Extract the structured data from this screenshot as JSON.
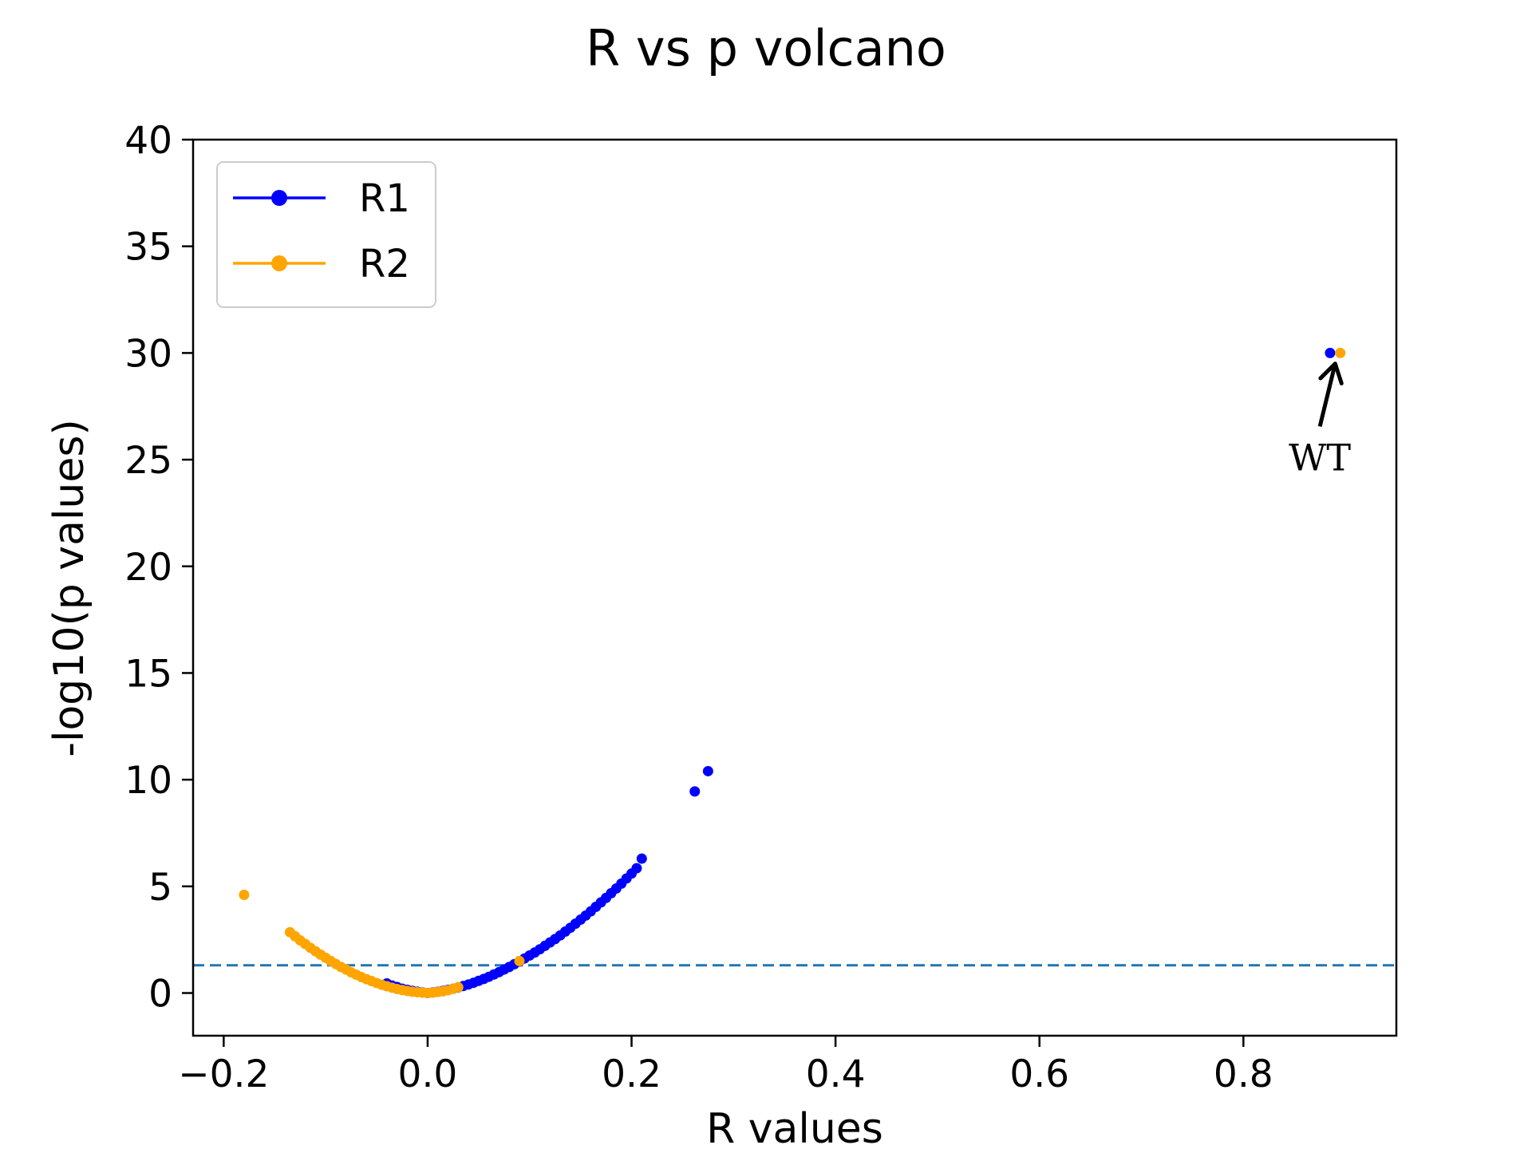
{
  "chart_data": {
    "type": "scatter",
    "title": "R vs p volcano",
    "xlabel": "R values",
    "ylabel": "-log10(p values)",
    "xlim": [
      -0.23,
      0.95
    ],
    "ylim": [
      -2,
      40
    ],
    "x_ticks": [
      -0.2,
      0.0,
      0.2,
      0.4,
      0.6,
      0.8
    ],
    "x_tick_labels": [
      "−0.2",
      "0.0",
      "0.2",
      "0.4",
      "0.6",
      "0.8"
    ],
    "y_ticks": [
      0,
      5,
      10,
      15,
      20,
      25,
      30,
      35,
      40
    ],
    "y_tick_labels": [
      "0",
      "5",
      "10",
      "15",
      "20",
      "25",
      "30",
      "35",
      "40"
    ],
    "grid": false,
    "legend_position": "top-left",
    "threshold_line": {
      "y": 1.3,
      "style": "dashed",
      "color": "#1f77b4"
    },
    "series": [
      {
        "name": "R1",
        "color": "#0000ff",
        "points": [
          [
            -0.04,
            0.45
          ],
          [
            -0.035,
            0.35
          ],
          [
            -0.03,
            0.28
          ],
          [
            -0.025,
            0.2
          ],
          [
            -0.02,
            0.15
          ],
          [
            -0.015,
            0.1
          ],
          [
            -0.01,
            0.06
          ],
          [
            -0.005,
            0.03
          ],
          [
            0.0,
            0.0
          ],
          [
            0.005,
            0.03
          ],
          [
            0.01,
            0.06
          ],
          [
            0.015,
            0.1
          ],
          [
            0.02,
            0.15
          ],
          [
            0.025,
            0.2
          ],
          [
            0.03,
            0.26
          ],
          [
            0.035,
            0.33
          ],
          [
            0.04,
            0.4
          ],
          [
            0.045,
            0.48
          ],
          [
            0.05,
            0.57
          ],
          [
            0.055,
            0.66
          ],
          [
            0.06,
            0.76
          ],
          [
            0.065,
            0.87
          ],
          [
            0.07,
            0.98
          ],
          [
            0.075,
            1.1
          ],
          [
            0.08,
            1.22
          ],
          [
            0.085,
            1.35
          ],
          [
            0.09,
            1.48
          ],
          [
            0.095,
            1.62
          ],
          [
            0.1,
            1.76
          ],
          [
            0.105,
            1.9
          ],
          [
            0.11,
            2.05
          ],
          [
            0.115,
            2.21
          ],
          [
            0.12,
            2.37
          ],
          [
            0.125,
            2.53
          ],
          [
            0.13,
            2.7
          ],
          [
            0.135,
            2.88
          ],
          [
            0.14,
            3.06
          ],
          [
            0.145,
            3.25
          ],
          [
            0.15,
            3.44
          ],
          [
            0.155,
            3.63
          ],
          [
            0.16,
            3.83
          ],
          [
            0.165,
            4.04
          ],
          [
            0.17,
            4.25
          ],
          [
            0.175,
            4.46
          ],
          [
            0.18,
            4.68
          ],
          [
            0.185,
            4.9
          ],
          [
            0.19,
            5.13
          ],
          [
            0.195,
            5.37
          ],
          [
            0.2,
            5.6
          ],
          [
            0.205,
            5.85
          ],
          [
            0.21,
            6.3
          ],
          [
            0.262,
            9.45
          ],
          [
            0.275,
            10.4
          ],
          [
            0.885,
            30.0
          ]
        ]
      },
      {
        "name": "R2",
        "color": "#ffa500",
        "points": [
          [
            -0.18,
            4.6
          ],
          [
            -0.135,
            2.85
          ],
          [
            -0.13,
            2.66
          ],
          [
            -0.125,
            2.47
          ],
          [
            -0.12,
            2.3
          ],
          [
            -0.115,
            2.12
          ],
          [
            -0.11,
            1.96
          ],
          [
            -0.105,
            1.8
          ],
          [
            -0.1,
            1.65
          ],
          [
            -0.095,
            1.5
          ],
          [
            -0.09,
            1.36
          ],
          [
            -0.085,
            1.22
          ],
          [
            -0.08,
            1.1
          ],
          [
            -0.075,
            0.97
          ],
          [
            -0.07,
            0.86
          ],
          [
            -0.065,
            0.75
          ],
          [
            -0.06,
            0.65
          ],
          [
            -0.055,
            0.56
          ],
          [
            -0.05,
            0.47
          ],
          [
            -0.045,
            0.39
          ],
          [
            -0.04,
            0.32
          ],
          [
            -0.035,
            0.25
          ],
          [
            -0.03,
            0.19
          ],
          [
            -0.025,
            0.14
          ],
          [
            -0.02,
            0.1
          ],
          [
            -0.015,
            0.06
          ],
          [
            -0.01,
            0.04
          ],
          [
            -0.005,
            0.02
          ],
          [
            0.0,
            0.0
          ],
          [
            0.005,
            0.02
          ],
          [
            0.01,
            0.05
          ],
          [
            0.015,
            0.08
          ],
          [
            0.02,
            0.13
          ],
          [
            0.025,
            0.2
          ],
          [
            0.03,
            0.27
          ],
          [
            0.09,
            1.5
          ],
          [
            0.895,
            30.0
          ]
        ]
      }
    ],
    "annotations": [
      {
        "text": "WT",
        "target": [
          0.89,
          29.5
        ],
        "text_pos": [
          0.875,
          24.5
        ]
      }
    ]
  }
}
